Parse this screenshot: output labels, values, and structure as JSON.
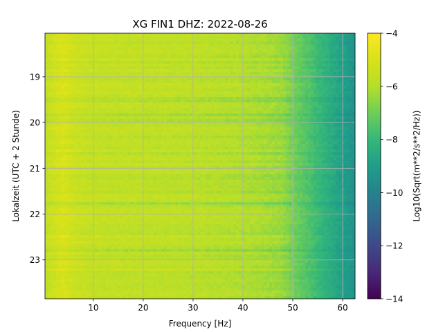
{
  "chart_data": {
    "type": "heatmap",
    "title": "XG FIN1  DHZ: 2022-08-26",
    "xlabel": "Frequency [Hz]",
    "ylabel": "Lokalzeit (UTC + 2 Stunde)",
    "xlim": [
      0.3,
      62.5
    ],
    "ylim": [
      23.85,
      18.05
    ],
    "xticks": [
      10,
      20,
      30,
      40,
      50,
      60
    ],
    "yticks": [
      19,
      20,
      21,
      22,
      23
    ],
    "grid": true,
    "colormap": "viridis",
    "colorbar": {
      "label": "Log10(Sqrt(m**2/s**2/Hz))",
      "range": [
        -14,
        -4
      ],
      "ticks": [
        -4,
        -6,
        -8,
        -10,
        -12,
        -14
      ],
      "tick_labels": [
        "−4",
        "−6",
        "−8",
        "−10",
        "−12",
        "−14"
      ]
    },
    "frequency_profile": {
      "frequency_hz": [
        0.3,
        2,
        4,
        6,
        8,
        10,
        15,
        20,
        25,
        30,
        35,
        40,
        45,
        48,
        50,
        52,
        54,
        56,
        58,
        60,
        62.5
      ],
      "log10_amplitude": [
        -5.7,
        -5.3,
        -5.0,
        -5.35,
        -5.5,
        -5.6,
        -5.65,
        -5.7,
        -5.75,
        -5.8,
        -5.9,
        -6.0,
        -6.2,
        -6.4,
        -6.9,
        -7.3,
        -7.7,
        -8.1,
        -8.5,
        -8.9,
        -9.4
      ]
    }
  }
}
